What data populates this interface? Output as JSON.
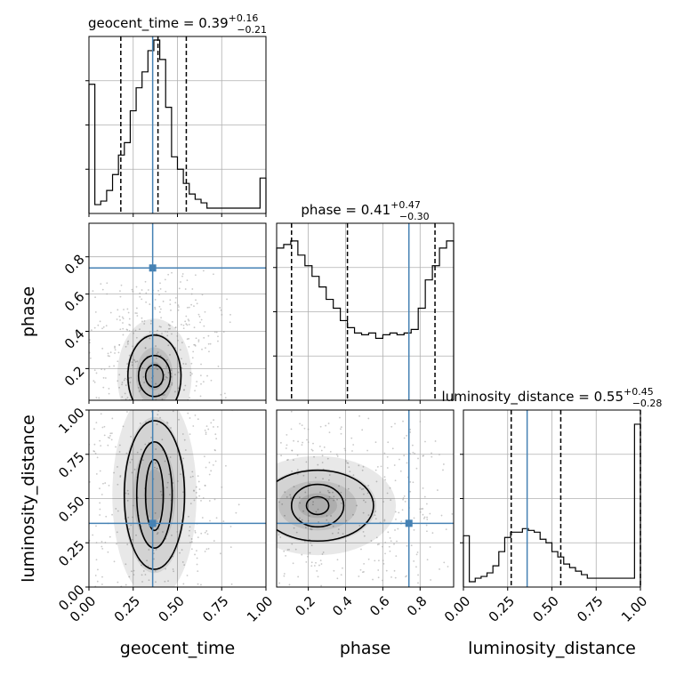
{
  "chart_data": {
    "type": "corner",
    "parameters": [
      "geocent_time",
      "phase",
      "luminosity_distance"
    ],
    "axis_labels": [
      "geocent_time",
      "phase",
      "luminosity_distance"
    ],
    "truths": [
      0.36,
      0.74,
      0.36
    ],
    "truth_color": "#4682b4",
    "hist_color": "#000000",
    "grid": true,
    "ranges": [
      [
        0.0,
        1.0
      ],
      [
        0.03,
        0.98
      ],
      [
        0.0,
        1.0
      ]
    ],
    "titles": [
      {
        "name": "geocent_time",
        "median": "0.39",
        "plus": "+0.16",
        "minus": "−0.21"
      },
      {
        "name": "phase",
        "median": "0.41",
        "plus": "+0.47",
        "minus": "−0.30"
      },
      {
        "name": "luminosity_distance",
        "median": "0.55",
        "plus": "+0.45",
        "minus": "−0.28"
      }
    ],
    "quantile_lines": [
      [
        0.18,
        0.39,
        0.55
      ],
      [
        0.11,
        0.41,
        0.88
      ],
      [
        0.27,
        0.55,
        1.0
      ]
    ],
    "x_ticks": [
      [
        "0.00",
        "0.25",
        "0.50",
        "0.75",
        "1.00"
      ],
      [
        "0.2",
        "0.4",
        "0.6",
        "0.8"
      ],
      [
        "0.00",
        "0.25",
        "0.50",
        "0.75",
        "1.00"
      ]
    ],
    "y_ticks": {
      "phase": [
        "0.2",
        "0.4",
        "0.6",
        "0.8"
      ],
      "luminosity_distance": [
        "0.00",
        "0.25",
        "0.50",
        "0.75",
        "1.00"
      ]
    },
    "marginals": {
      "geocent_time": [
        0.73,
        0.05,
        0.07,
        0.13,
        0.22,
        0.33,
        0.4,
        0.58,
        0.71,
        0.8,
        0.92,
        0.98,
        0.87,
        0.6,
        0.32,
        0.25,
        0.17,
        0.11,
        0.08,
        0.06,
        0.03,
        0.03,
        0.03,
        0.03,
        0.03,
        0.03,
        0.03,
        0.03,
        0.03,
        0.2
      ],
      "phase": [
        0.86,
        0.88,
        0.9,
        0.82,
        0.76,
        0.7,
        0.64,
        0.57,
        0.52,
        0.45,
        0.41,
        0.38,
        0.37,
        0.38,
        0.35,
        0.37,
        0.38,
        0.37,
        0.38,
        0.4,
        0.52,
        0.68,
        0.76,
        0.86,
        0.9
      ],
      "luminosity_distance": [
        0.29,
        0.03,
        0.05,
        0.06,
        0.08,
        0.12,
        0.2,
        0.28,
        0.31,
        0.31,
        0.33,
        0.32,
        0.31,
        0.27,
        0.25,
        0.2,
        0.17,
        0.13,
        0.11,
        0.09,
        0.07,
        0.05,
        0.05,
        0.05,
        0.05,
        0.05,
        0.05,
        0.05,
        0.05,
        0.92
      ]
    },
    "contours": {
      "geocent_time_vs_phase": {
        "center": [
          0.37,
          0.16
        ],
        "spread": [
          [
            0.05,
            0.06
          ],
          [
            0.09,
            0.11
          ],
          [
            0.15,
            0.22
          ]
        ]
      },
      "geocent_time_vs_luminosity_distance": {
        "center": [
          0.37,
          0.52
        ],
        "spread": [
          [
            0.05,
            0.2
          ],
          [
            0.1,
            0.3
          ],
          [
            0.17,
            0.42
          ]
        ]
      },
      "phase_vs_luminosity_distance": {
        "center": [
          0.25,
          0.46
        ],
        "spread": [
          [
            0.06,
            0.05
          ],
          [
            0.14,
            0.12
          ],
          [
            0.3,
            0.2
          ]
        ]
      }
    }
  }
}
